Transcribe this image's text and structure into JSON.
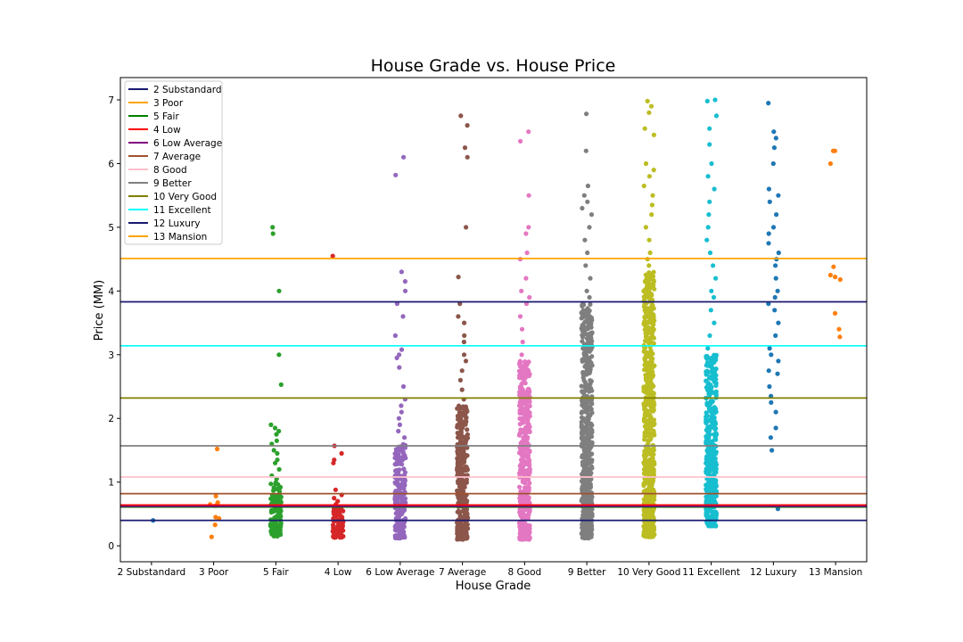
{
  "chart_data": {
    "type": "scatter",
    "title": "House Grade vs. House Price",
    "xlabel": "House Grade",
    "ylabel": "Price (MM)",
    "ylim": [
      -0.25,
      7.35
    ],
    "yticks": [
      0,
      1,
      2,
      3,
      4,
      5,
      6,
      7
    ],
    "categories": [
      "2 Substandard",
      "3 Poor",
      "5 Fair",
      "4 Low",
      "6 Low Average",
      "7 Average",
      "8 Good",
      "9 Better",
      "10 Very Good",
      "11 Excellent",
      "12 Luxury",
      "13 Mansion"
    ],
    "point_colors": [
      "#1f77b4",
      "#ff7f0e",
      "#2ca02c",
      "#d62728",
      "#9467bd",
      "#8c564b",
      "#e377c2",
      "#7f7f7f",
      "#bcbd22",
      "#17becf",
      "#1f77b4",
      "#ff7f0e"
    ],
    "strip_points": [
      {
        "category": "2 Substandard",
        "min": 0.4,
        "max": 0.4,
        "dense_max": 0.4,
        "outliers": [
          0.4
        ]
      },
      {
        "category": "3 Poor",
        "min": 0.14,
        "max": 1.52,
        "dense_max": 0.14,
        "outliers": [
          0.14,
          0.33,
          0.43,
          0.45,
          0.63,
          0.65,
          0.68,
          0.78,
          1.52
        ]
      },
      {
        "category": "5 Fair",
        "min": 0.15,
        "max": 5.0,
        "dense_max": 1.0,
        "outliers": [
          1.05,
          1.1,
          1.2,
          1.3,
          1.35,
          1.45,
          1.5,
          1.6,
          1.65,
          1.75,
          1.8,
          1.85,
          1.9,
          2.53,
          3.0,
          4.0,
          4.9,
          5.0
        ]
      },
      {
        "category": "4 Low",
        "min": 0.13,
        "max": 4.55,
        "dense_max": 0.6,
        "outliers": [
          0.65,
          0.7,
          0.75,
          0.8,
          0.88,
          1.3,
          1.35,
          1.45,
          1.57,
          4.55
        ]
      },
      {
        "category": "6 Low Average",
        "min": 0.12,
        "max": 6.1,
        "dense_max": 1.6,
        "outliers": [
          1.7,
          1.8,
          1.9,
          2.0,
          2.1,
          2.2,
          2.3,
          2.5,
          2.8,
          2.95,
          3.0,
          3.08,
          3.3,
          3.6,
          3.8,
          4.0,
          4.15,
          4.3,
          5.82,
          6.1
        ]
      },
      {
        "category": "7 Average",
        "min": 0.1,
        "max": 6.75,
        "dense_max": 2.2,
        "outliers": [
          2.3,
          2.45,
          2.6,
          2.75,
          2.9,
          3.0,
          3.2,
          3.3,
          3.5,
          3.6,
          3.8,
          4.22,
          5.0,
          6.1,
          6.25,
          6.6,
          6.75
        ]
      },
      {
        "category": "8 Good",
        "min": 0.1,
        "max": 6.5,
        "dense_max": 2.9,
        "outliers": [
          3.0,
          3.2,
          3.4,
          3.6,
          3.8,
          3.9,
          4.0,
          4.2,
          4.5,
          4.6,
          4.9,
          5.0,
          5.5,
          6.35,
          6.5
        ]
      },
      {
        "category": "9 Better",
        "min": 0.12,
        "max": 6.78,
        "dense_max": 3.8,
        "outliers": [
          3.9,
          4.0,
          4.2,
          4.4,
          4.6,
          4.8,
          5.0,
          5.2,
          5.3,
          5.4,
          5.5,
          5.65,
          6.2,
          6.78
        ]
      },
      {
        "category": "10 Very Good",
        "min": 0.14,
        "max": 6.98,
        "dense_max": 4.3,
        "outliers": [
          4.4,
          4.5,
          4.6,
          4.8,
          5.0,
          5.2,
          5.35,
          5.5,
          5.65,
          5.8,
          5.9,
          6.0,
          6.45,
          6.55,
          6.8,
          6.9,
          6.98
        ]
      },
      {
        "category": "11 Excellent",
        "min": 0.31,
        "max": 7.0,
        "dense_max": 3.0,
        "outliers": [
          3.1,
          3.3,
          3.5,
          3.7,
          3.9,
          4.0,
          4.2,
          4.4,
          4.6,
          4.8,
          5.0,
          5.2,
          5.4,
          5.6,
          5.8,
          6.0,
          6.3,
          6.55,
          6.75,
          6.98,
          7.0
        ]
      },
      {
        "category": "12 Luxury",
        "min": 0.58,
        "max": 6.95,
        "dense_max": 0.58,
        "outliers": [
          0.58,
          1.5,
          1.7,
          1.85,
          2.1,
          2.25,
          2.35,
          2.5,
          2.7,
          2.75,
          2.9,
          3.0,
          3.1,
          3.3,
          3.5,
          3.7,
          3.8,
          3.9,
          4.0,
          4.2,
          4.4,
          4.5,
          4.6,
          4.75,
          4.9,
          5.0,
          5.2,
          5.4,
          5.5,
          5.6,
          6.0,
          6.25,
          6.4,
          6.5,
          6.95
        ]
      },
      {
        "category": "13 Mansion",
        "min": 3.28,
        "max": 6.2,
        "dense_max": 3.28,
        "outliers": [
          3.28,
          3.4,
          3.65,
          4.18,
          4.22,
          4.25,
          4.38,
          6.0,
          6.2,
          6.2
        ]
      }
    ],
    "mean_lines": [
      {
        "name": "2 Substandard",
        "value": 0.4,
        "color": "#191970"
      },
      {
        "name": "3 Poor",
        "value": 0.62,
        "color": "#ffa500"
      },
      {
        "name": "5 Fair",
        "value": 0.61,
        "color": "#008000"
      },
      {
        "name": "4 Low",
        "value": 0.64,
        "color": "#ff0000"
      },
      {
        "name": "6 Low Average",
        "value": 0.62,
        "color": "#800080"
      },
      {
        "name": "7 Average",
        "value": 0.82,
        "color": "#a0522d"
      },
      {
        "name": "8 Good",
        "value": 1.08,
        "color": "#ffc0cb"
      },
      {
        "name": "9 Better",
        "value": 1.57,
        "color": "#808080"
      },
      {
        "name": "10 Very Good",
        "value": 2.32,
        "color": "#808000"
      },
      {
        "name": "11 Excellent",
        "value": 3.14,
        "color": "#00ffff"
      },
      {
        "name": "12 Luxury",
        "value": 3.83,
        "color": "#191970"
      },
      {
        "name": "13 Mansion",
        "value": 4.51,
        "color": "#ffa500"
      }
    ],
    "legend_placement": "top-left",
    "grid": false
  }
}
